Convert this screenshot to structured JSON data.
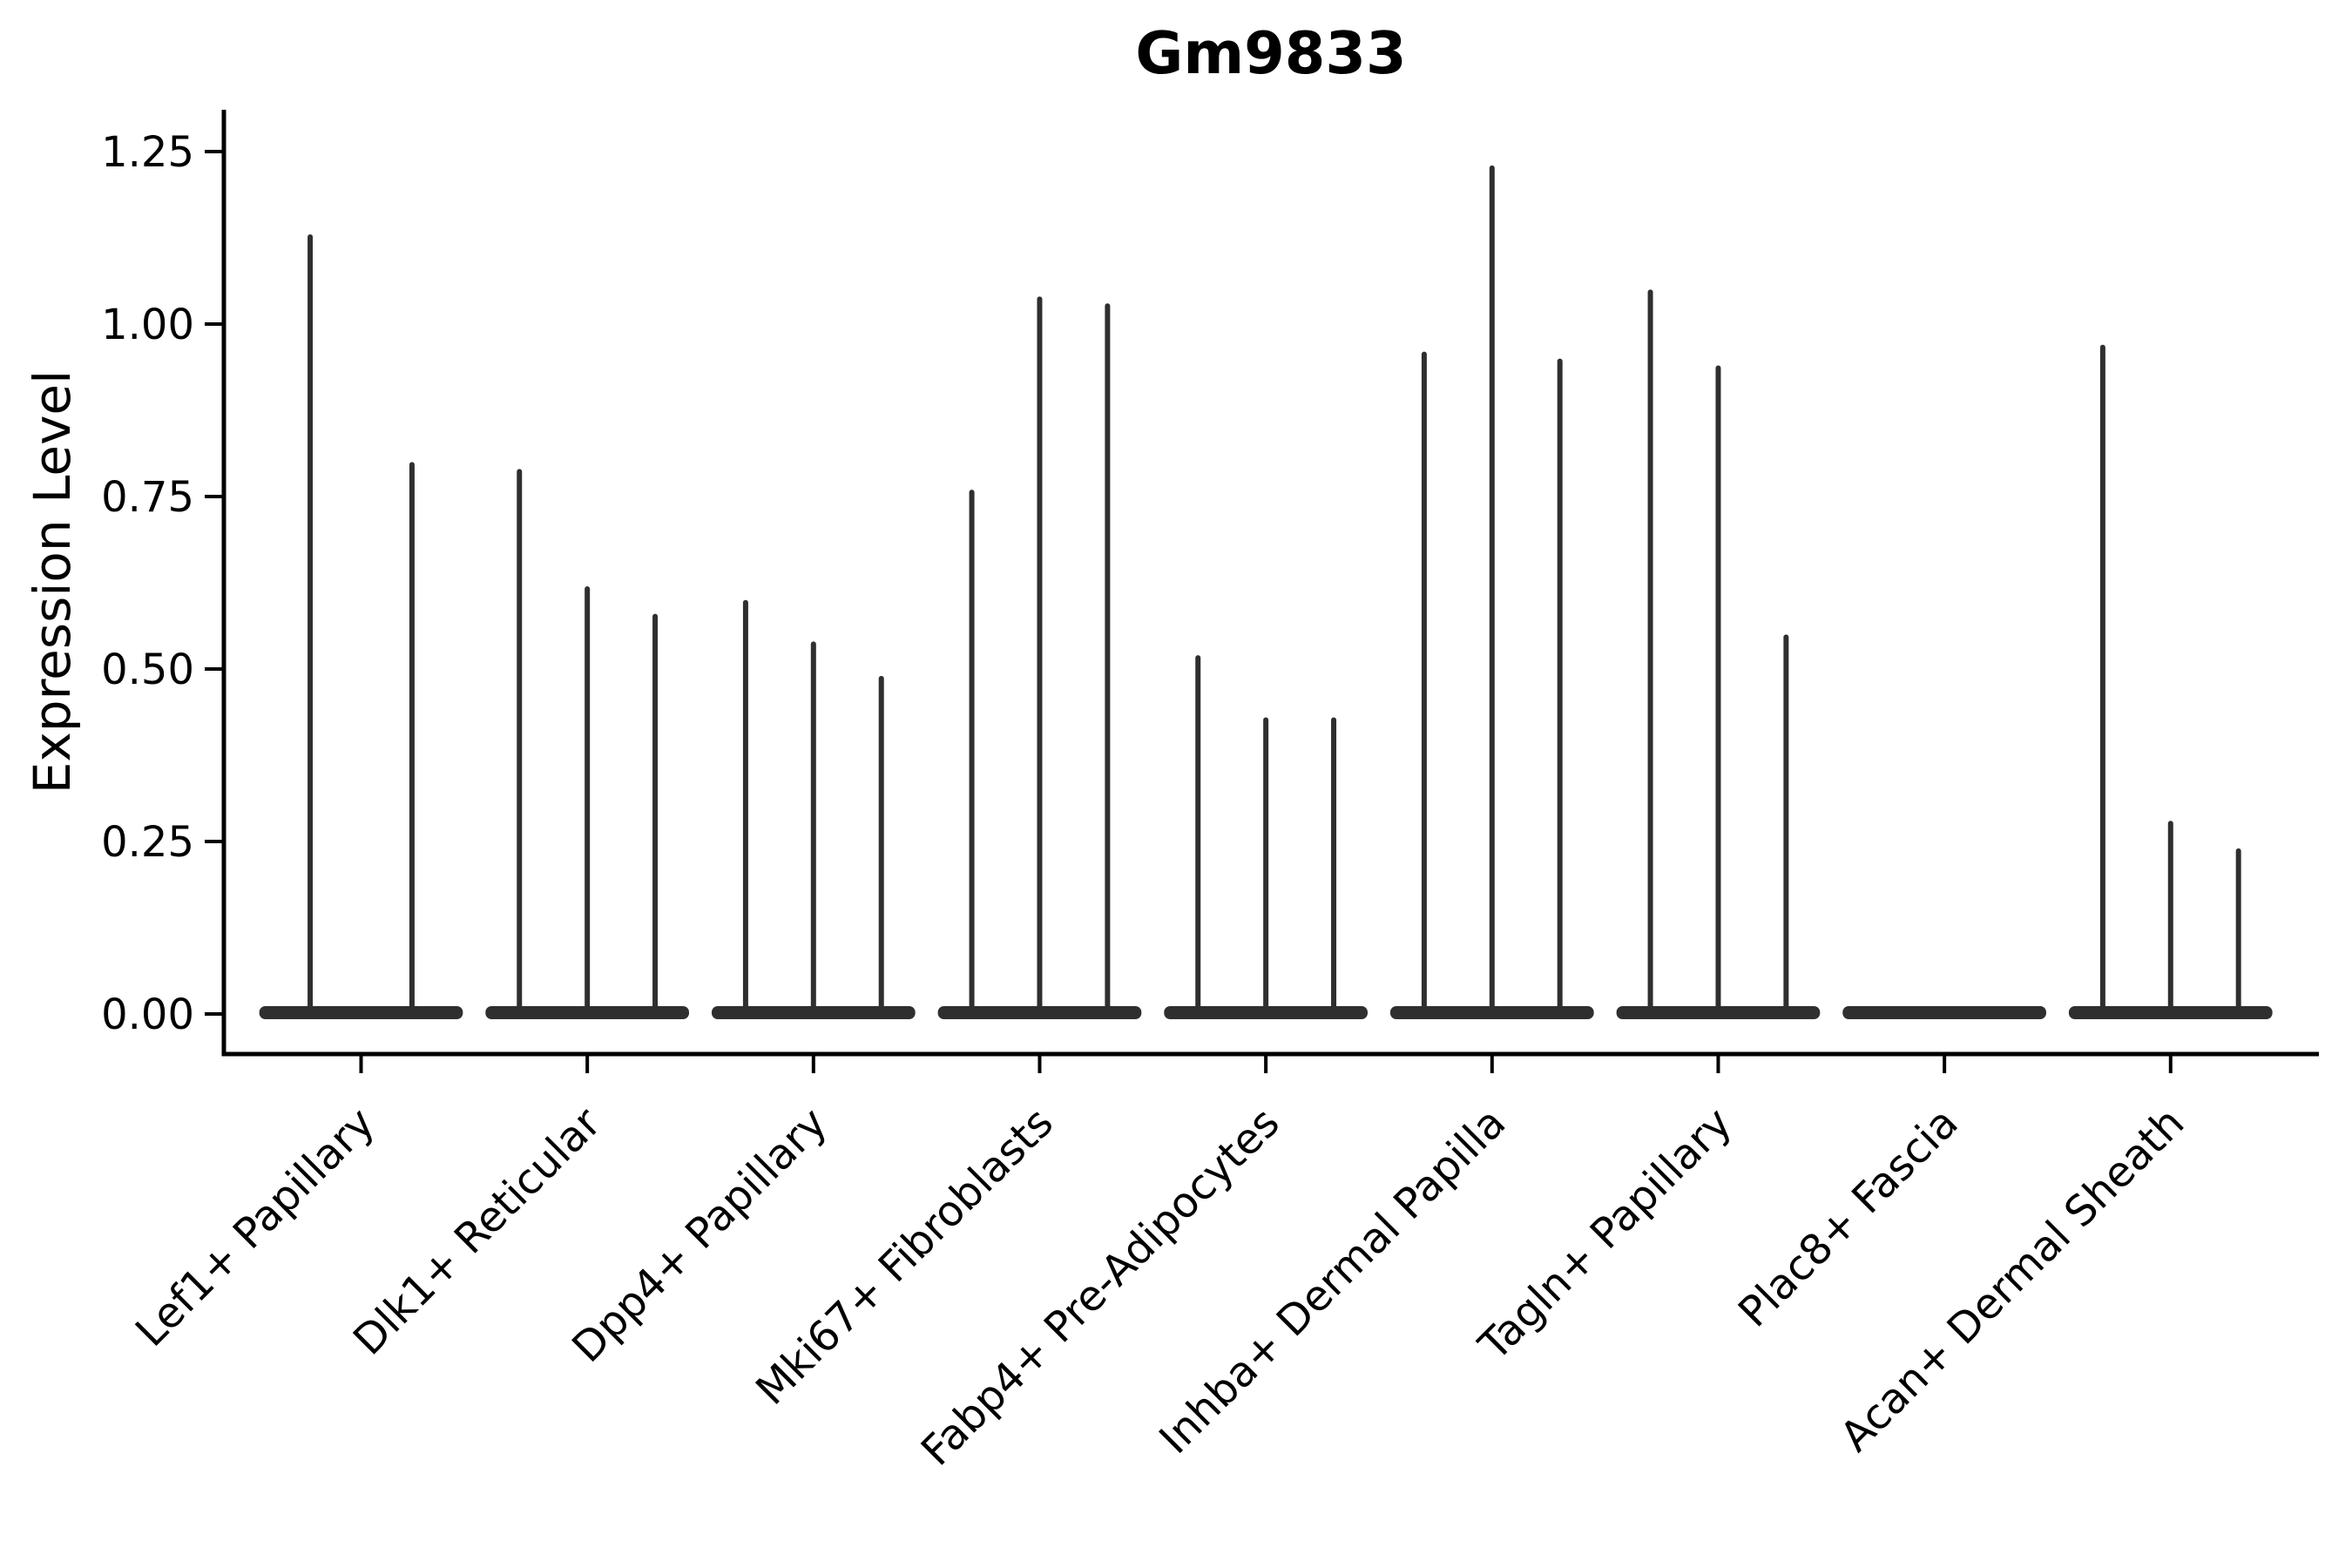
{
  "title": "Gm9833",
  "axes": {
    "ylabel": "Expression Level",
    "ytick_labels": [
      "0.00",
      "0.25",
      "0.50",
      "0.75",
      "1.00",
      "1.25"
    ],
    "yticks": [
      0.0,
      0.25,
      0.5,
      0.75,
      1.0,
      1.25
    ],
    "ylim": [
      -0.06,
      1.31
    ]
  },
  "chart_data": {
    "type": "violin",
    "title": "Gm9833",
    "ylabel": "Expression Level",
    "categories": [
      "Lef1+ Papillary",
      "Dlk1+ Reticular",
      "Dpp4+ Papillary",
      "Mki67+ Fibroblasts",
      "Fabp4+ Pre-Adipocytes",
      "Inhba+ Dermal Papilla",
      "Tagln+ Papillary",
      "Plac8+ Fascia",
      "Acan+ Dermal Sheath"
    ],
    "violins": [
      {
        "category": "Lef1+ Papillary",
        "spike_maxima": [
          1.13,
          0.8
        ]
      },
      {
        "category": "Dlk1+ Reticular",
        "spike_maxima": [
          0.79,
          0.62,
          0.58
        ]
      },
      {
        "category": "Dpp4+ Papillary",
        "spike_maxima": [
          0.6,
          0.54,
          0.49
        ]
      },
      {
        "category": "Mki67+ Fibroblasts",
        "spike_maxima": [
          0.76,
          1.04,
          1.03
        ]
      },
      {
        "category": "Fabp4+ Pre-Adipocytes",
        "spike_maxima": [
          0.52,
          0.43,
          0.43
        ]
      },
      {
        "category": "Inhba+ Dermal Papilla",
        "spike_maxima": [
          0.96,
          1.23,
          0.95
        ]
      },
      {
        "category": "Tagln+ Papillary",
        "spike_maxima": [
          1.05,
          0.94,
          0.55
        ]
      },
      {
        "category": "Plac8+ Fascia",
        "spike_maxima": []
      },
      {
        "category": "Acan+ Dermal Sheath",
        "spike_maxima": [
          0.97,
          0.28,
          0.24
        ]
      }
    ],
    "yticks": [
      0.0,
      0.25,
      0.5,
      0.75,
      1.0,
      1.25
    ],
    "ylim": [
      -0.06,
      1.31
    ],
    "grid": false,
    "legend": null,
    "description": "Zero-inflated violins: each category shows a flat base at 0 plus thin spikes reaching each sub-violin maximum"
  },
  "colors": {
    "violin": "#2f2f2f",
    "axis": "#000000",
    "text": "#000000",
    "background": "#ffffff"
  }
}
